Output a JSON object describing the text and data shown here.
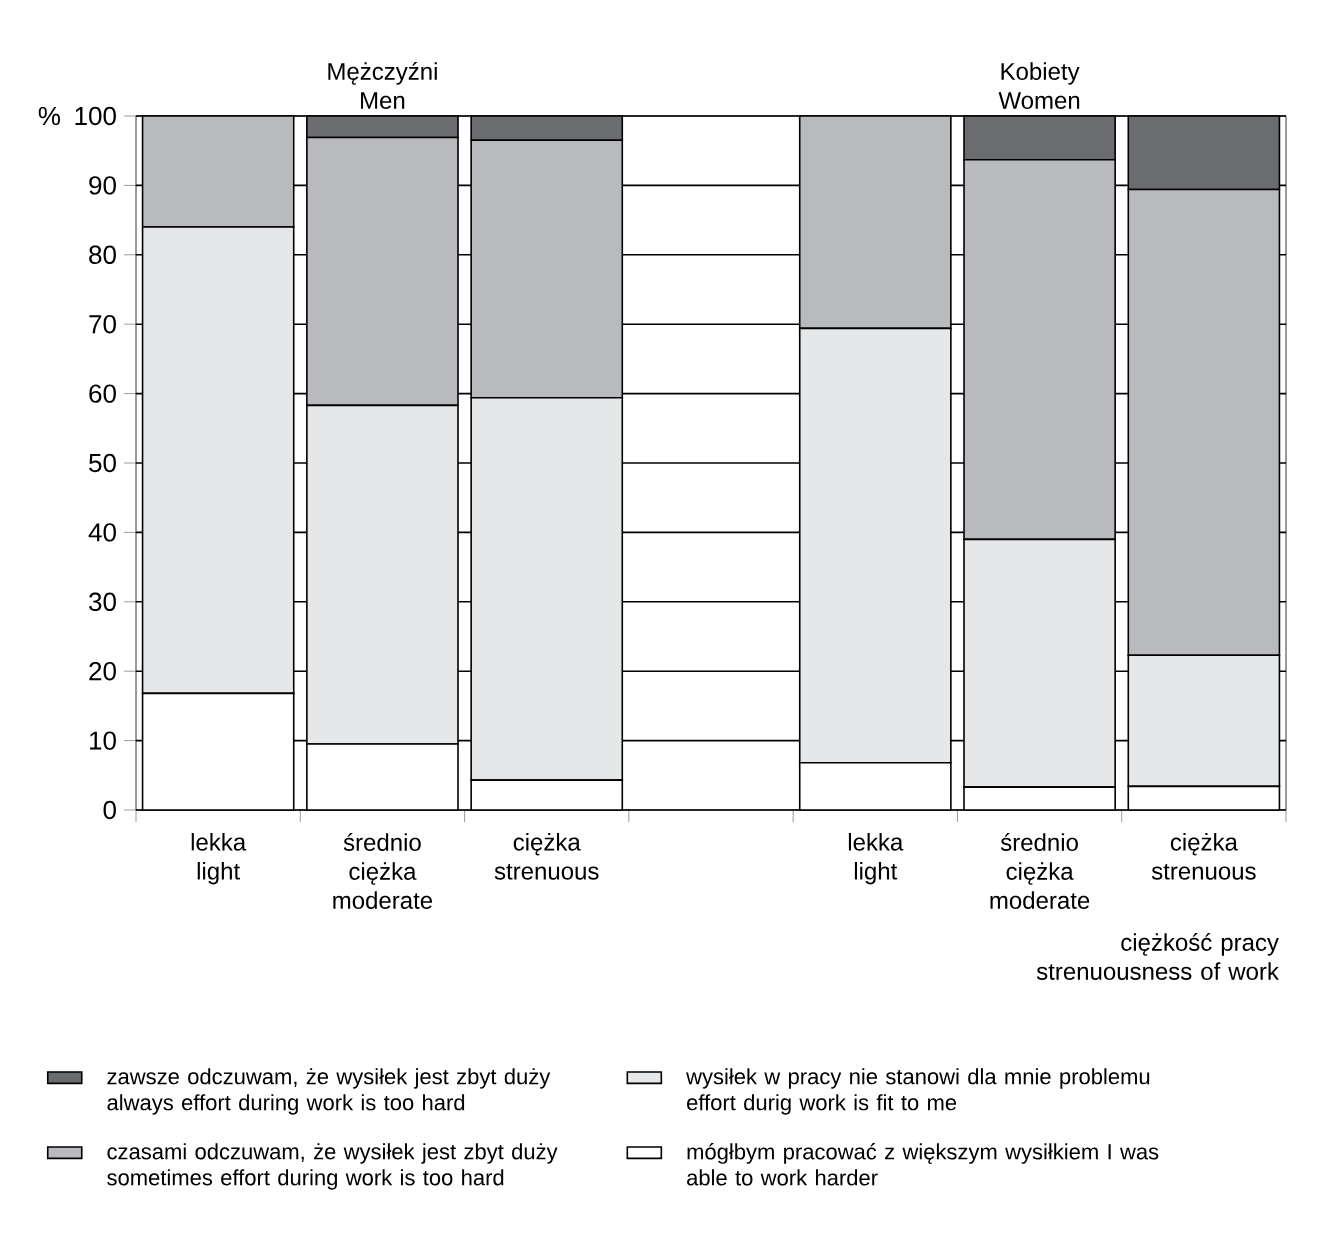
{
  "chart_data": {
    "type": "bar",
    "stacked": true,
    "categories": [
      "lekka light",
      "średnio ciężka moderate",
      "ciężka strenuous",
      null,
      "lekka light",
      "średnio ciężka moderate",
      "ciężka strenuous"
    ],
    "xlabel": "ciężkość pracy strenuousness of work",
    "ylabel": "%",
    "annotations": [
      "Mężczyźni Men",
      "Kobiety Women"
    ],
    "ylim": [
      0,
      100
    ],
    "yticks": [
      0,
      10,
      20,
      30,
      40,
      50,
      60,
      70,
      80,
      90,
      100
    ],
    "grid": "y",
    "legend": "bottom",
    "series": [
      {
        "name": "mógłbym pracować z większym wysiłkiem I was able to work harder",
        "color": "#ffffff",
        "values": [
          16.8,
          9.5,
          4.3,
          null,
          6.8,
          3.3,
          3.4
        ]
      },
      {
        "name": "wysiłek w pracy nie stanowi dla mnie problemu effort durig work is fit to me",
        "color": "#e6e7e8",
        "values": [
          67.2,
          48.8,
          55.1,
          null,
          62.6,
          35.7,
          18.9
        ]
      },
      {
        "name": "czasami odczuwam, że wysiłek jest zbyt duży sometimes effort during work is too hard",
        "color": "#b9babd",
        "values": [
          16.0,
          38.6,
          37.1,
          null,
          30.6,
          54.7,
          67.1
        ]
      },
      {
        "name": "zawsze odczuwam, że wysiłek jest zbyt duży always effort during work is too hard",
        "color": "#6b6c70",
        "values": [
          0,
          3.1,
          3.5,
          null,
          0,
          6.3,
          10.6
        ]
      }
    ]
  }
}
